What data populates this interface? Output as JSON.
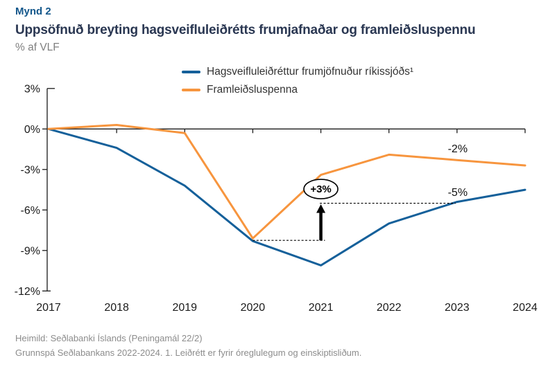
{
  "header": {
    "figure_label": "Mynd 2",
    "title": "Uppsöfnuð breyting hagsveifluleiðrétts frumjafnaðar og framleiðsluspennu",
    "subtitle": "% af VLF"
  },
  "legend": {
    "items": [
      {
        "label": "Hagsveifluleiðréttur frumjöfnuður ríkissjóðs¹",
        "color": "#15609A"
      },
      {
        "label": "Framleiðsluspenna",
        "color": "#F7953E"
      }
    ]
  },
  "chart_data": {
    "type": "line",
    "x": [
      2017,
      2018,
      2019,
      2020,
      2021,
      2022,
      2023,
      2024
    ],
    "series": [
      {
        "name": "Hagsveifluleiðréttur frumjöfnuður ríkissjóðs¹",
        "color": "#15609A",
        "values": [
          0.0,
          -1.4,
          -4.2,
          -8.3,
          -10.1,
          -7.0,
          -5.4,
          -4.5
        ]
      },
      {
        "name": "Framleiðsluspenna",
        "color": "#F7953E",
        "values": [
          0.0,
          0.3,
          -0.3,
          -8.1,
          -3.4,
          -1.9,
          -2.3,
          -2.7
        ]
      }
    ],
    "ylabel": "% af VLF",
    "ylim": [
      -12,
      3
    ],
    "yticks": [
      3,
      0,
      -3,
      -6,
      -9,
      -12
    ],
    "ytick_labels": [
      "3%",
      "0%",
      "-3%",
      "-6%",
      "-9%",
      "-12%"
    ],
    "xtick_labels": [
      "2017",
      "2018",
      "2019",
      "2020",
      "2021",
      "2022",
      "2023",
      "2024"
    ],
    "grid": false,
    "legend_position": "top",
    "annotations": [
      {
        "type": "dashed-line",
        "y": -8.25,
        "from_x": 2020,
        "to_x": 2021.06
      },
      {
        "type": "dashed-line",
        "y": -5.5,
        "from_x": 2020.985,
        "to_x": 2022.98
      },
      {
        "type": "arrow",
        "x": 2021,
        "from_y": -8.25,
        "to_y": -5.5
      },
      {
        "type": "ellipse-label",
        "text": "+3%",
        "x": 2021,
        "y": -4.45
      },
      {
        "type": "text",
        "text": "-2%",
        "x": 2023.01,
        "y": -1.45
      },
      {
        "type": "text",
        "text": "-5%",
        "x": 2023.01,
        "y": -4.68
      }
    ]
  },
  "footer": {
    "line1": "Heimild: Seðlabanki Íslands (Peningamál 22/2)",
    "line2": "Grunnspá Seðlabankans 2022-2024. 1. Leiðrétt er fyrir óreglulegum og einskiptisliðum."
  }
}
